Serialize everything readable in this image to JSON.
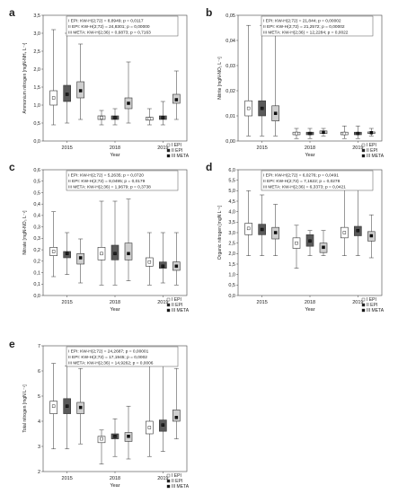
{
  "colors": {
    "g1": "#ffffff",
    "g2": "#5a5a5a",
    "g3": "#cfcfcf",
    "m1": "#ffffff",
    "m2": "#222222",
    "m3": "#111111"
  },
  "legend": [
    "I EPI",
    "II EPI",
    "III META"
  ],
  "chart_data": [
    {
      "type": "box",
      "letter": "a",
      "ylabel": "Ammonium nitrogen [mgN-NH₄ L⁻¹]",
      "xlabel": "Year",
      "categories": [
        "2015",
        "2018",
        "2019"
      ],
      "ylim": [
        0,
        3.5
      ],
      "yticks": [
        "0,0",
        "0,5",
        "1,0",
        "1,5",
        "2,0",
        "2,5",
        "3,0",
        "3,5"
      ],
      "stats": [
        "I EPI:  KW-H(2;72) = 8,8949; p = 0,0117",
        "II EPI:  KW-H(2;72) = 24,8301; p = 0,00000",
        "III META:  KW-H(2;36) = 0,6873; p = 0,7163"
      ],
      "groups": [
        [
          [
            0.45,
            1.0,
            1.2,
            1.4,
            3.1
          ],
          [
            0.5,
            1.1,
            1.3,
            1.55,
            3.0
          ],
          [
            0.6,
            1.2,
            1.4,
            1.65,
            2.7
          ]
        ],
        [
          [
            0.45,
            0.6,
            0.65,
            0.7,
            0.85
          ],
          [
            0.45,
            0.6,
            0.65,
            0.7,
            0.9
          ],
          [
            0.5,
            0.9,
            1.05,
            1.2,
            2.2
          ]
        ],
        [
          [
            0.45,
            0.58,
            0.62,
            0.66,
            0.9
          ],
          [
            0.45,
            0.6,
            0.65,
            0.7,
            1.1
          ],
          [
            0.6,
            1.05,
            1.15,
            1.3,
            1.95
          ]
        ]
      ]
    },
    {
      "type": "box",
      "letter": "b",
      "ylabel": "Nitrite [mgN-NO₂ L⁻¹]",
      "xlabel": "Year",
      "categories": [
        "2015",
        "2018",
        "2019"
      ],
      "ylim": [
        0,
        0.05
      ],
      "yticks": [
        "0,00",
        "0,01",
        "0,02",
        "0,03",
        "0,04",
        "0,05"
      ],
      "stats": [
        "I EPI:  KW-H(2;72) = 21,844; p = 0,00002",
        "II EPI:  KW-H(2;72) = 21,2572; p = 0,00002",
        "III META:  KW-H(2;36) = 12,2284; p = 0,0022"
      ],
      "groups": [
        [
          [
            0.002,
            0.01,
            0.013,
            0.016,
            0.046
          ],
          [
            0.002,
            0.01,
            0.013,
            0.016,
            0.046
          ],
          [
            0.002,
            0.008,
            0.011,
            0.014,
            0.043
          ]
        ],
        [
          [
            0.001,
            0.0025,
            0.003,
            0.0035,
            0.005
          ],
          [
            0.001,
            0.0025,
            0.003,
            0.0035,
            0.005
          ],
          [
            0.002,
            0.003,
            0.0035,
            0.004,
            0.005
          ]
        ],
        [
          [
            0.001,
            0.0025,
            0.003,
            0.0035,
            0.006
          ],
          [
            0.001,
            0.0025,
            0.003,
            0.0035,
            0.006
          ],
          [
            0.002,
            0.003,
            0.0033,
            0.0036,
            0.005
          ]
        ]
      ]
    },
    {
      "type": "box",
      "letter": "c",
      "ylabel": "Nitrate [mgN-NO₃ L⁻¹]",
      "xlabel": "Year",
      "categories": [
        "2015",
        "2018",
        "2019"
      ],
      "ylim": [
        0,
        0.6
      ],
      "yticks": [
        "0,0",
        "0,1",
        "0,1",
        "0,2",
        "0,2",
        "0,3",
        "0,3",
        "0,4",
        "0,4",
        "0,5",
        "0,5",
        "0,6"
      ],
      "stats": [
        "I EPI:  KW-H(2;72) = 5,2635; p = 0,0720",
        "II EPI:  KW-H(2;72) = 8,0495; p = 0,0179",
        "III META:  KW-H(2;36) = 1,9679; p = 0,3738"
      ],
      "groups": [
        [
          [
            0.09,
            0.19,
            0.21,
            0.23,
            0.4
          ],
          [
            0.1,
            0.18,
            0.2,
            0.21,
            0.3
          ],
          [
            0.06,
            0.15,
            0.18,
            0.2,
            0.27
          ]
        ],
        [
          [
            0.05,
            0.17,
            0.2,
            0.23,
            0.45
          ],
          [
            0.05,
            0.17,
            0.2,
            0.24,
            0.45
          ],
          [
            0.07,
            0.17,
            0.2,
            0.25,
            0.46
          ]
        ],
        [
          [
            0.05,
            0.14,
            0.16,
            0.18,
            0.3
          ],
          [
            0.06,
            0.13,
            0.14,
            0.16,
            0.3
          ],
          [
            0.05,
            0.12,
            0.14,
            0.16,
            0.3
          ]
        ]
      ]
    },
    {
      "type": "box",
      "letter": "d",
      "ylabel": "Organic nitrogen [mgN L⁻¹]",
      "xlabel": "Year",
      "categories": [
        "2015",
        "2018",
        "2019"
      ],
      "ylim": [
        0,
        6
      ],
      "yticks": [
        "0,0",
        "0,5",
        "1,0",
        "1,5",
        "2,0",
        "2,5",
        "3,0",
        "3,5",
        "4,0",
        "4,5",
        "5,0",
        "5,5",
        "6,0"
      ],
      "stats": [
        "I EPI:  KW-H(2;72) = 6,0276; p = 0,0491",
        "II EPI:  KW-H(2;72) = 7,1622; p = 0,0278",
        "III META:  KW-H(2;36) = 6,3373; p = 0,0421"
      ],
      "groups": [
        [
          [
            1.9,
            2.9,
            3.2,
            3.45,
            5.0
          ],
          [
            1.9,
            2.9,
            3.15,
            3.4,
            4.8
          ],
          [
            1.9,
            2.7,
            3.0,
            3.25,
            4.35
          ]
        ],
        [
          [
            1.3,
            2.25,
            2.5,
            2.75,
            3.35
          ],
          [
            1.9,
            2.35,
            2.6,
            2.9,
            3.1
          ],
          [
            1.9,
            2.05,
            2.3,
            2.5,
            3.1
          ]
        ],
        [
          [
            1.9,
            2.75,
            3.0,
            3.25,
            5.2
          ],
          [
            1.9,
            2.85,
            3.1,
            3.3,
            5.2
          ],
          [
            1.8,
            2.6,
            2.85,
            3.05,
            3.85
          ]
        ]
      ]
    },
    {
      "type": "box",
      "letter": "e",
      "ylabel": "Total nitrogen [mgN L⁻¹]",
      "xlabel": "Year",
      "categories": [
        "2015",
        "2018",
        "2019"
      ],
      "ylim": [
        2,
        7
      ],
      "yticks": [
        "2",
        "3",
        "4",
        "5",
        "6",
        "7"
      ],
      "stats": [
        "I EPI:  KW-H(2;72) = 24,2687; p = 0,00001",
        "II EPI:  KW-H(2;72) = 17,1945; p = 0,0002",
        "III META:  KW-H(2;36) = 14,9262; p = 0,0006"
      ],
      "groups": [
        [
          [
            2.9,
            4.3,
            4.6,
            4.8,
            6.3
          ],
          [
            2.9,
            4.3,
            4.6,
            4.9,
            6.2
          ],
          [
            3.1,
            4.3,
            4.55,
            4.75,
            6.1
          ]
        ],
        [
          [
            2.3,
            3.15,
            3.3,
            3.4,
            3.65
          ],
          [
            2.6,
            3.3,
            3.4,
            3.5,
            4.1
          ],
          [
            2.5,
            3.2,
            3.4,
            3.55,
            4.6
          ]
        ],
        [
          [
            2.6,
            3.5,
            3.75,
            4.0,
            6.3
          ],
          [
            2.8,
            3.6,
            3.85,
            4.05,
            6.2
          ],
          [
            3.3,
            4.0,
            4.15,
            4.45,
            6.1
          ]
        ]
      ]
    }
  ]
}
